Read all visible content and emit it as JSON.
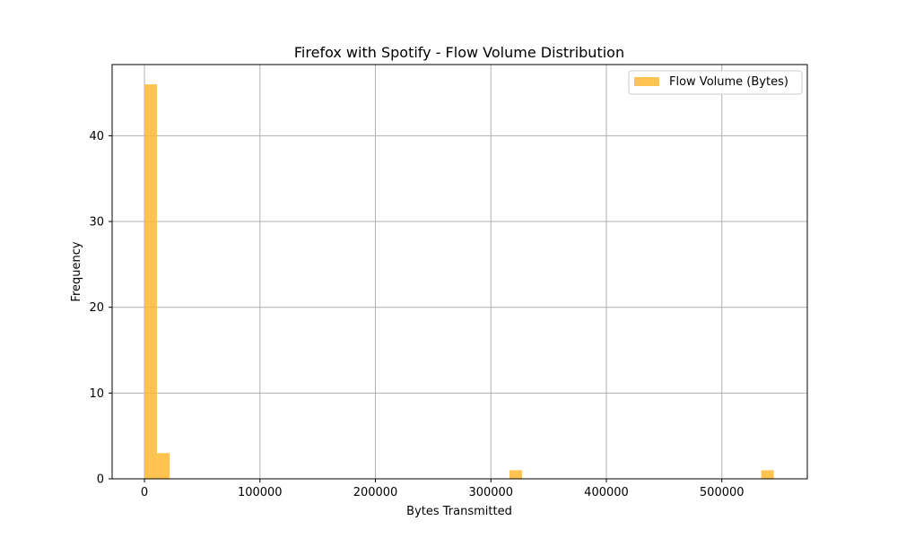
{
  "chart_data": {
    "type": "bar",
    "title": "Firefox with Spotify - Flow Volume Distribution",
    "xlabel": "Bytes Transmitted",
    "ylabel": "Frequency",
    "xlim": [
      -28000,
      574000
    ],
    "ylim": [
      0,
      48.3
    ],
    "xticks": [
      0,
      100000,
      200000,
      300000,
      400000,
      500000
    ],
    "yticks": [
      0,
      10,
      20,
      30,
      40
    ],
    "grid": true,
    "legend_position": "top-right",
    "series": [
      {
        "name": "Flow Volume (Bytes)",
        "color": "#FFB833",
        "bins": [
          {
            "x0": 0,
            "x1": 10900,
            "count": 46
          },
          {
            "x0": 10900,
            "x1": 21800,
            "count": 3
          },
          {
            "x0": 316100,
            "x1": 327000,
            "count": 1
          },
          {
            "x0": 534100,
            "x1": 545000,
            "count": 1
          }
        ]
      }
    ]
  }
}
